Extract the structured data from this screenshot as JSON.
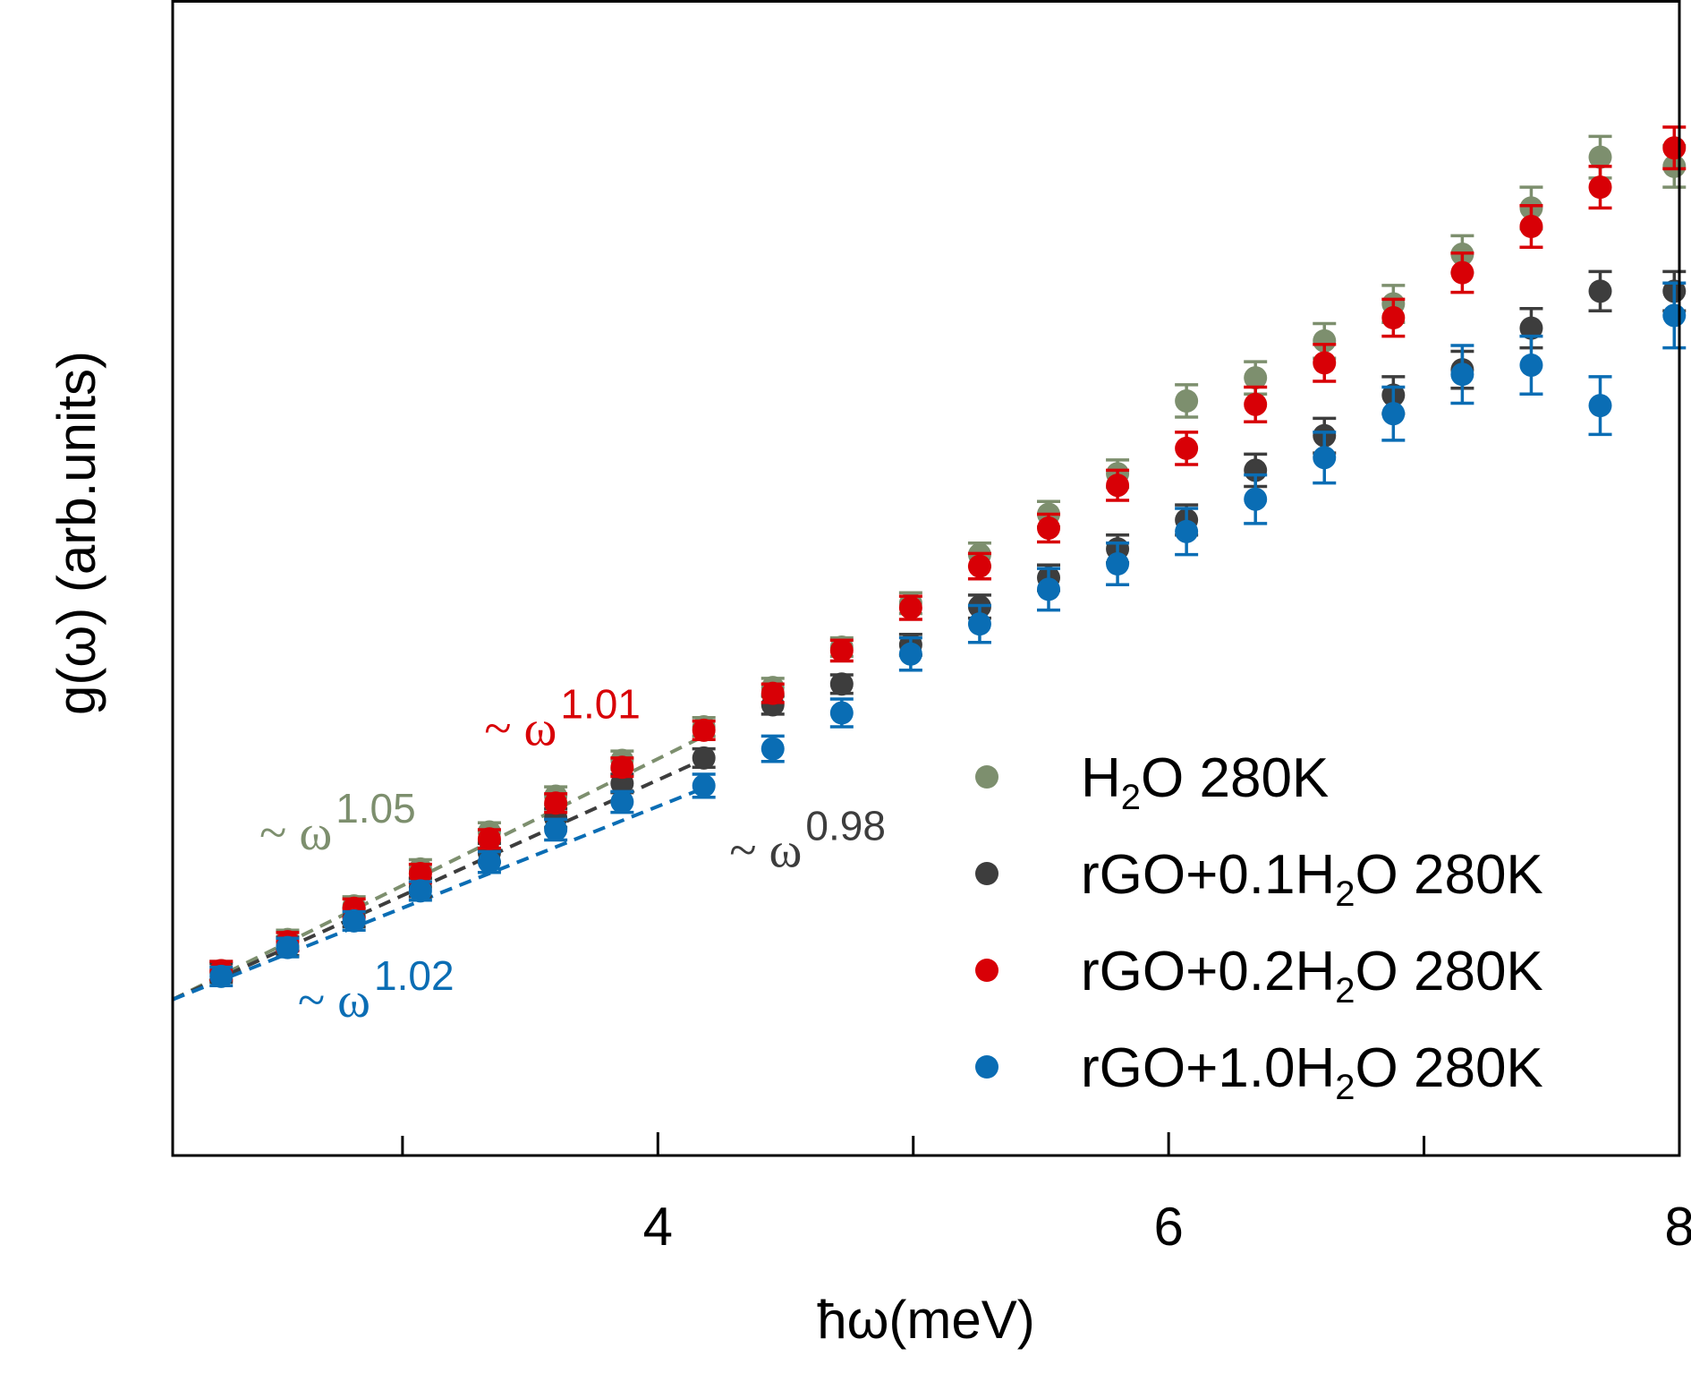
{
  "chart_data": {
    "type": "scatter",
    "title": "",
    "xlabel": "ħω(meV)",
    "ylabel": "g(ω) (arb.units)",
    "xlim": [
      2.1,
      8.0
    ],
    "ylim": [
      0.0,
      1.0
    ],
    "x_ticks": [
      4,
      6,
      8
    ],
    "x_minor_ticks": [
      3,
      5,
      7
    ],
    "x_tick_labels": [
      "4",
      "6",
      "8"
    ],
    "y_ticks": [],
    "grid": false,
    "legend_position": "bottom-right",
    "series": [
      {
        "name": "H₂O 280K",
        "legend_main": "H",
        "legend_sub": "2",
        "legend_tail": "O 280K",
        "color": "#7d8f6e",
        "points": [
          {
            "x": 2.29,
            "y": 0.16,
            "err": 0.008
          },
          {
            "x": 2.55,
            "y": 0.187,
            "err": 0.008
          },
          {
            "x": 2.81,
            "y": 0.216,
            "err": 0.008
          },
          {
            "x": 3.07,
            "y": 0.248,
            "err": 0.008
          },
          {
            "x": 3.34,
            "y": 0.28,
            "err": 0.008
          },
          {
            "x": 3.6,
            "y": 0.311,
            "err": 0.008
          },
          {
            "x": 3.86,
            "y": 0.342,
            "err": 0.008
          },
          {
            "x": 4.18,
            "y": 0.371,
            "err": 0.008
          },
          {
            "x": 4.45,
            "y": 0.405,
            "err": 0.008
          },
          {
            "x": 4.72,
            "y": 0.44,
            "err": 0.008
          },
          {
            "x": 4.99,
            "y": 0.478,
            "err": 0.009
          },
          {
            "x": 5.26,
            "y": 0.52,
            "err": 0.01
          },
          {
            "x": 5.53,
            "y": 0.555,
            "err": 0.011
          },
          {
            "x": 5.8,
            "y": 0.59,
            "err": 0.012
          },
          {
            "x": 6.07,
            "y": 0.653,
            "err": 0.014
          },
          {
            "x": 6.34,
            "y": 0.673,
            "err": 0.014
          },
          {
            "x": 6.61,
            "y": 0.705,
            "err": 0.015
          },
          {
            "x": 6.88,
            "y": 0.737,
            "err": 0.016
          },
          {
            "x": 7.15,
            "y": 0.78,
            "err": 0.016
          },
          {
            "x": 7.42,
            "y": 0.82,
            "err": 0.018
          },
          {
            "x": 7.69,
            "y": 0.864,
            "err": 0.018
          },
          {
            "x": 7.98,
            "y": 0.856,
            "err": 0.018
          }
        ]
      },
      {
        "name": "rGO+0.1H₂O 280K",
        "legend_main": "rGO+0.1H",
        "legend_sub": "2",
        "legend_tail": "O 280K",
        "color": "#3d3d3d",
        "points": [
          {
            "x": 2.29,
            "y": 0.158,
            "err": 0.008
          },
          {
            "x": 2.55,
            "y": 0.181,
            "err": 0.008
          },
          {
            "x": 2.81,
            "y": 0.206,
            "err": 0.008
          },
          {
            "x": 3.07,
            "y": 0.232,
            "err": 0.008
          },
          {
            "x": 3.34,
            "y": 0.262,
            "err": 0.008
          },
          {
            "x": 3.6,
            "y": 0.292,
            "err": 0.008
          },
          {
            "x": 3.86,
            "y": 0.322,
            "err": 0.008
          },
          {
            "x": 4.18,
            "y": 0.344,
            "err": 0.008
          },
          {
            "x": 4.45,
            "y": 0.39,
            "err": 0.008
          },
          {
            "x": 4.72,
            "y": 0.408,
            "err": 0.008
          },
          {
            "x": 4.99,
            "y": 0.442,
            "err": 0.009
          },
          {
            "x": 5.26,
            "y": 0.475,
            "err": 0.01
          },
          {
            "x": 5.53,
            "y": 0.5,
            "err": 0.011
          },
          {
            "x": 5.8,
            "y": 0.525,
            "err": 0.012
          },
          {
            "x": 6.07,
            "y": 0.55,
            "err": 0.013
          },
          {
            "x": 6.34,
            "y": 0.593,
            "err": 0.014
          },
          {
            "x": 6.61,
            "y": 0.623,
            "err": 0.015
          },
          {
            "x": 6.88,
            "y": 0.658,
            "err": 0.016
          },
          {
            "x": 7.15,
            "y": 0.68,
            "err": 0.016
          },
          {
            "x": 7.42,
            "y": 0.716,
            "err": 0.017
          },
          {
            "x": 7.69,
            "y": 0.748,
            "err": 0.017
          },
          {
            "x": 7.98,
            "y": 0.748,
            "err": 0.017
          }
        ]
      },
      {
        "name": "rGO+0.2H₂O 280K",
        "legend_main": "rGO+0.2H",
        "legend_sub": "2",
        "legend_tail": "O 280K",
        "color": "#d80006",
        "points": [
          {
            "x": 2.29,
            "y": 0.16,
            "err": 0.008
          },
          {
            "x": 2.55,
            "y": 0.185,
            "err": 0.008
          },
          {
            "x": 2.81,
            "y": 0.214,
            "err": 0.008
          },
          {
            "x": 3.07,
            "y": 0.244,
            "err": 0.008
          },
          {
            "x": 3.34,
            "y": 0.274,
            "err": 0.008
          },
          {
            "x": 3.6,
            "y": 0.305,
            "err": 0.008
          },
          {
            "x": 3.86,
            "y": 0.336,
            "err": 0.008
          },
          {
            "x": 4.18,
            "y": 0.368,
            "err": 0.008
          },
          {
            "x": 4.45,
            "y": 0.4,
            "err": 0.008
          },
          {
            "x": 4.72,
            "y": 0.437,
            "err": 0.009
          },
          {
            "x": 4.99,
            "y": 0.474,
            "err": 0.01
          },
          {
            "x": 5.26,
            "y": 0.51,
            "err": 0.011
          },
          {
            "x": 5.53,
            "y": 0.543,
            "err": 0.012
          },
          {
            "x": 5.8,
            "y": 0.58,
            "err": 0.013
          },
          {
            "x": 6.07,
            "y": 0.612,
            "err": 0.014
          },
          {
            "x": 6.34,
            "y": 0.65,
            "err": 0.015
          },
          {
            "x": 6.61,
            "y": 0.686,
            "err": 0.016
          },
          {
            "x": 6.88,
            "y": 0.725,
            "err": 0.016
          },
          {
            "x": 7.15,
            "y": 0.764,
            "err": 0.017
          },
          {
            "x": 7.42,
            "y": 0.804,
            "err": 0.018
          },
          {
            "x": 7.69,
            "y": 0.838,
            "err": 0.018
          },
          {
            "x": 7.98,
            "y": 0.872,
            "err": 0.018
          }
        ]
      },
      {
        "name": "rGO+1.0H₂O 280K",
        "legend_main": "rGO+1.0H",
        "legend_sub": "2",
        "legend_tail": "O 280K",
        "color": "#0a6db4",
        "points": [
          {
            "x": 2.29,
            "y": 0.155,
            "err": 0.008
          },
          {
            "x": 2.55,
            "y": 0.18,
            "err": 0.008
          },
          {
            "x": 2.81,
            "y": 0.203,
            "err": 0.008
          },
          {
            "x": 3.07,
            "y": 0.229,
            "err": 0.008
          },
          {
            "x": 3.34,
            "y": 0.254,
            "err": 0.009
          },
          {
            "x": 3.6,
            "y": 0.282,
            "err": 0.009
          },
          {
            "x": 3.86,
            "y": 0.306,
            "err": 0.009
          },
          {
            "x": 4.18,
            "y": 0.32,
            "err": 0.01
          },
          {
            "x": 4.45,
            "y": 0.352,
            "err": 0.011
          },
          {
            "x": 4.72,
            "y": 0.383,
            "err": 0.012
          },
          {
            "x": 4.99,
            "y": 0.434,
            "err": 0.014
          },
          {
            "x": 5.26,
            "y": 0.46,
            "err": 0.016
          },
          {
            "x": 5.53,
            "y": 0.49,
            "err": 0.018
          },
          {
            "x": 5.8,
            "y": 0.512,
            "err": 0.018
          },
          {
            "x": 6.07,
            "y": 0.54,
            "err": 0.02
          },
          {
            "x": 6.34,
            "y": 0.568,
            "err": 0.021
          },
          {
            "x": 6.61,
            "y": 0.604,
            "err": 0.022
          },
          {
            "x": 6.88,
            "y": 0.642,
            "err": 0.023
          },
          {
            "x": 7.15,
            "y": 0.676,
            "err": 0.025
          },
          {
            "x": 7.42,
            "y": 0.684,
            "err": 0.025
          },
          {
            "x": 7.69,
            "y": 0.649,
            "err": 0.025
          },
          {
            "x": 7.98,
            "y": 0.727,
            "err": 0.028
          }
        ]
      }
    ],
    "fit_lines": [
      {
        "series": 0,
        "color": "#7d8f6e",
        "x": [
          2.1,
          4.18
        ],
        "y": [
          0.135,
          0.363
        ]
      },
      {
        "series": 1,
        "color": "#3d3d3d",
        "x": [
          2.1,
          4.18
        ],
        "y": [
          0.135,
          0.343
        ]
      },
      {
        "series": 3,
        "color": "#0a6db4",
        "x": [
          2.1,
          4.18
        ],
        "y": [
          0.135,
          0.318
        ]
      }
    ],
    "annotations": [
      {
        "prefix": "~ ω",
        "exponent": "1.05",
        "color": "#7d8f6e",
        "x": 2.44,
        "y": 0.265
      },
      {
        "prefix": "~ ω",
        "exponent": "1.01",
        "color": "#d80006",
        "x": 3.32,
        "y": 0.355
      },
      {
        "prefix": "~ ω",
        "exponent": "0.98",
        "color": "#3d3d3d",
        "x": 4.28,
        "y": 0.25
      },
      {
        "prefix": "~ ω",
        "exponent": "1.02",
        "color": "#0a6db4",
        "x": 2.59,
        "y": 0.12
      }
    ]
  }
}
